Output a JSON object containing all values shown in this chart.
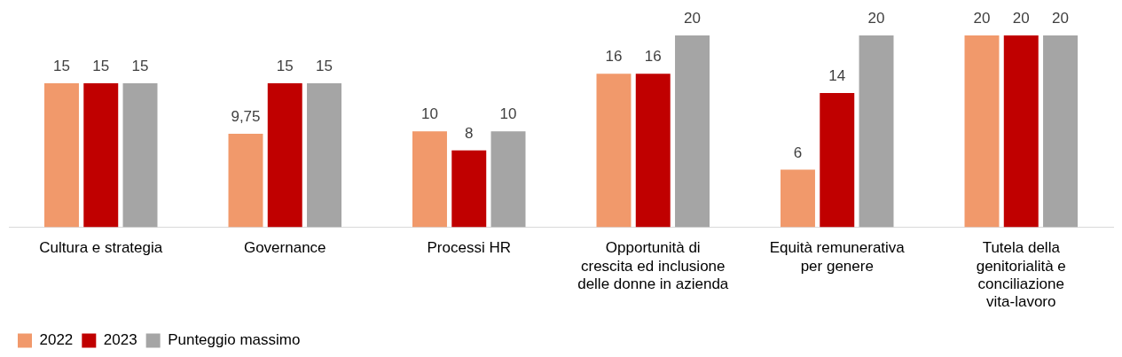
{
  "chart_data": {
    "type": "bar",
    "categories": [
      "Cultura e strategia",
      "Governance",
      "Processi HR",
      "Opportunità di crescita ed inclusione delle donne in azienda",
      "Equità remunerativa per genere",
      "Tutela della genitorialità e conciliazione vita-lavoro"
    ],
    "series": [
      {
        "name": "2022",
        "color": "#f1996b",
        "values": [
          15,
          9.75,
          10,
          16,
          6,
          20
        ],
        "value_labels": [
          "15",
          "9,75",
          "10",
          "16",
          "6",
          "20"
        ]
      },
      {
        "name": "2023",
        "color": "#c00000",
        "values": [
          15,
          15,
          8,
          16,
          14,
          20
        ],
        "value_labels": [
          "15",
          "15",
          "8",
          "16",
          "14",
          "20"
        ]
      },
      {
        "name": "Punteggio massimo",
        "color": "#a5a5a5",
        "values": [
          15,
          15,
          10,
          20,
          20,
          20
        ],
        "value_labels": [
          "15",
          "15",
          "10",
          "20",
          "20",
          "20"
        ]
      }
    ],
    "legend": "bottom left",
    "grid": false
  }
}
